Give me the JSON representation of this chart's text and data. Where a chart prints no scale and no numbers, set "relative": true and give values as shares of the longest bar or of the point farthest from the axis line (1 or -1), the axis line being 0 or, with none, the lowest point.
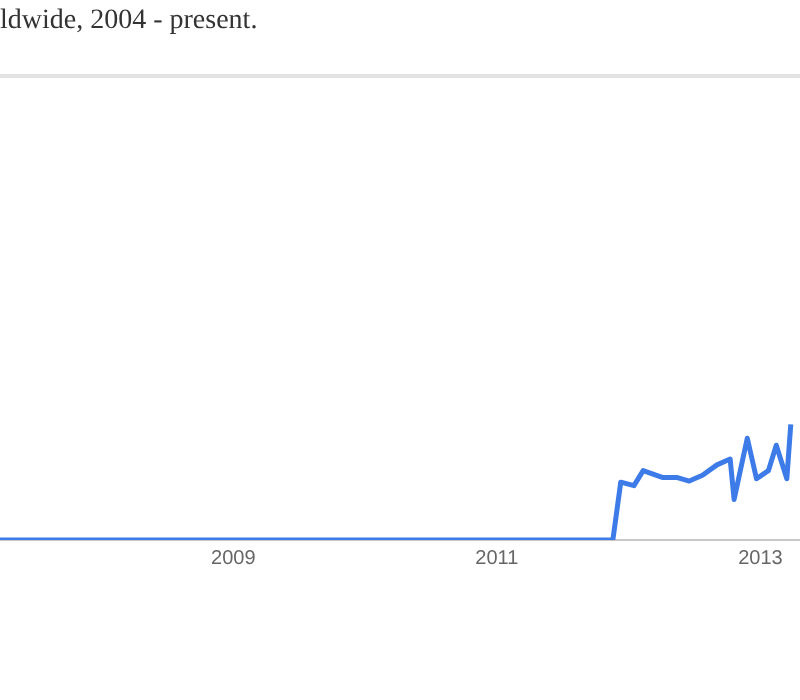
{
  "chart_data": {
    "type": "line",
    "title": "ldwide, 2004 - present.",
    "relative": true,
    "x": [
      2007.23,
      2011.88,
      2011.94,
      2012.04,
      2012.11,
      2012.26,
      2012.37,
      2012.46,
      2012.56,
      2012.67,
      2012.77,
      2012.8,
      2012.9,
      2012.97,
      2013.06,
      2013.12,
      2013.2,
      2013.23
    ],
    "series": [
      {
        "color": "#3d7be8",
        "values": [
          0,
          0,
          0.5,
          0.47,
          0.6,
          0.54,
          0.54,
          0.51,
          0.56,
          0.65,
          0.7,
          0.35,
          0.88,
          0.53,
          0.6,
          0.82,
          0.53,
          1
        ]
      }
    ],
    "xlim": [
      2007.23,
      2013.3
    ],
    "xticks": [
      2009,
      2011,
      2013
    ],
    "legend": false,
    "marker": "none",
    "line_style": "solid"
  }
}
